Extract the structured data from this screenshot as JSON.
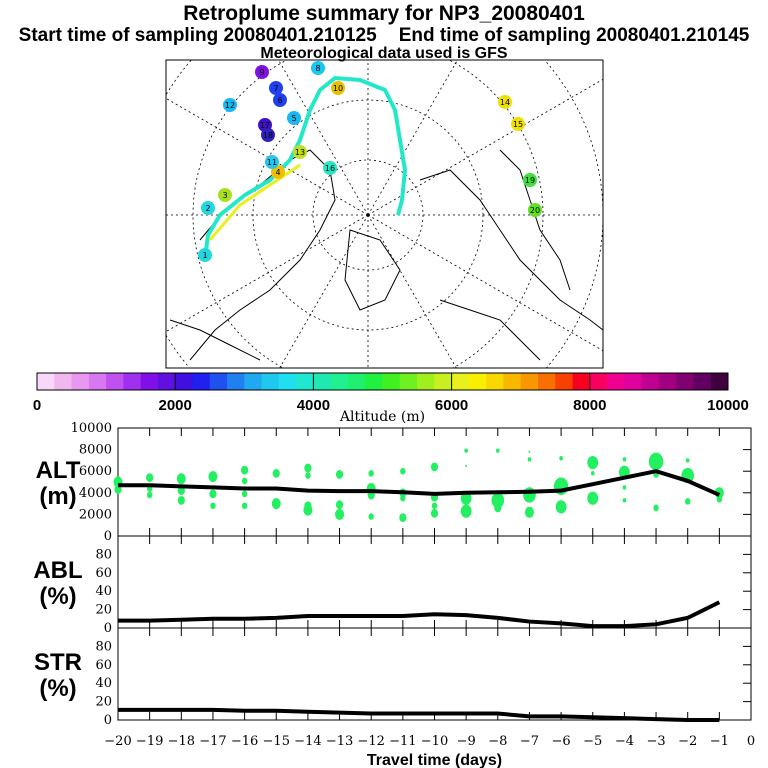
{
  "title": "Retroplume summary for NP3_20080401",
  "subtitle_start": "Start time of sampling 20080401.210125",
  "subtitle_end": "End time of sampling 20080401.210145",
  "subtitle_met": "Meteorological data used is GFS",
  "colors": {
    "trajectory": "#22e8c8",
    "bubble": "#22f060",
    "line": "#000000"
  },
  "chart_data": [
    {
      "type": "map",
      "name": "trajectory-map",
      "labels": [
        {
          "t": "1",
          "c": "#22d8e0"
        },
        {
          "t": "2",
          "c": "#22d8e0"
        },
        {
          "t": "3",
          "c": "#a8e020"
        },
        {
          "t": "4",
          "c": "#f0c000"
        },
        {
          "t": "5",
          "c": "#18b8f0"
        },
        {
          "t": "6",
          "c": "#2040f0"
        },
        {
          "t": "7",
          "c": "#2040f0"
        },
        {
          "t": "8",
          "c": "#18c8f0"
        },
        {
          "t": "9",
          "c": "#8010e0"
        },
        {
          "t": "10",
          "c": "#e8c000"
        },
        {
          "t": "11",
          "c": "#20c8f0"
        },
        {
          "t": "12",
          "c": "#18b8f0"
        },
        {
          "t": "13",
          "c": "#c0e020"
        },
        {
          "t": "14",
          "c": "#f0e000"
        },
        {
          "t": "15",
          "c": "#f0e000"
        },
        {
          "t": "16",
          "c": "#22e8c8"
        },
        {
          "t": "17",
          "c": "#4010c8"
        },
        {
          "t": "18",
          "c": "#3020c0"
        },
        {
          "t": "19",
          "c": "#40e040"
        },
        {
          "t": "20",
          "c": "#60e020"
        }
      ]
    },
    {
      "type": "colorbar",
      "xlabel": "Altitude (m)",
      "ticks": [
        "0",
        "2000",
        "4000",
        "6000",
        "8000",
        "10000"
      ],
      "range": [
        0,
        10000
      ],
      "colors": [
        "#f8d8f8",
        "#f0b8f0",
        "#e898f0",
        "#d878f0",
        "#c050f0",
        "#a030f0",
        "#8010e8",
        "#6010e0",
        "#4010e0",
        "#2020f0",
        "#2050f0",
        "#2080f0",
        "#20a8f0",
        "#20c8f0",
        "#20e0f0",
        "#20e8d0",
        "#20e8b0",
        "#20f090",
        "#20f070",
        "#20f040",
        "#40f020",
        "#70f020",
        "#a0f020",
        "#c8f020",
        "#e8f020",
        "#f8f000",
        "#f8d800",
        "#f8b800",
        "#f89800",
        "#f87000",
        "#f84000",
        "#f80020",
        "#f80060",
        "#f00090",
        "#e000a0",
        "#c00090",
        "#a00080",
        "#800070",
        "#600060",
        "#400040"
      ]
    },
    {
      "type": "line",
      "name": "ALT",
      "ylabel": "ALT",
      "yunit": "(m)",
      "ylim": [
        0,
        10000
      ],
      "yticks": [
        "0",
        "2000",
        "4000",
        "6000",
        "8000",
        "10000"
      ],
      "x": [
        -20,
        -19,
        -18,
        -17,
        -16,
        -15,
        -14,
        -13,
        -12,
        -11,
        -10,
        -9,
        -8,
        -7,
        -6,
        -5,
        -4,
        -3,
        -2,
        -1
      ],
      "values": [
        4700,
        4700,
        4600,
        4500,
        4400,
        4400,
        4200,
        4150,
        4150,
        4050,
        3900,
        4000,
        4050,
        4100,
        4200,
        4800,
        5400,
        6000,
        5100,
        3800
      ],
      "bubbles": [
        [
          -20,
          5000,
          5
        ],
        [
          -20,
          4300,
          4
        ],
        [
          -19,
          5400,
          4
        ],
        [
          -19,
          4400,
          3
        ],
        [
          -19,
          3800,
          3
        ],
        [
          -18,
          5300,
          5
        ],
        [
          -18,
          4200,
          4
        ],
        [
          -18,
          3300,
          4
        ],
        [
          -17,
          5500,
          5
        ],
        [
          -17,
          3900,
          4
        ],
        [
          -17,
          2800,
          3
        ],
        [
          -16,
          6100,
          4
        ],
        [
          -16,
          5100,
          3
        ],
        [
          -16,
          3900,
          3
        ],
        [
          -16,
          2800,
          3
        ],
        [
          -15,
          5800,
          4
        ],
        [
          -15,
          3000,
          5
        ],
        [
          -14,
          6300,
          4
        ],
        [
          -14,
          5600,
          3
        ],
        [
          -14,
          2800,
          4
        ],
        [
          -14,
          2400,
          5
        ],
        [
          -13,
          5700,
          4
        ],
        [
          -13,
          2900,
          4
        ],
        [
          -13,
          2000,
          5
        ],
        [
          -12,
          5800,
          3
        ],
        [
          -12,
          4400,
          5
        ],
        [
          -12,
          3800,
          4
        ],
        [
          -12,
          1800,
          3
        ],
        [
          -11,
          6000,
          3
        ],
        [
          -11,
          4000,
          4
        ],
        [
          -11,
          3500,
          3
        ],
        [
          -11,
          1700,
          4
        ],
        [
          -10,
          6400,
          4
        ],
        [
          -10,
          3600,
          4
        ],
        [
          -10,
          2800,
          3
        ],
        [
          -10,
          2100,
          4
        ],
        [
          -9,
          7900,
          2
        ],
        [
          -9,
          6500,
          1
        ],
        [
          -9,
          3500,
          6
        ],
        [
          -9,
          2300,
          6
        ],
        [
          -8,
          7900,
          2
        ],
        [
          -8,
          3300,
          7
        ],
        [
          -8,
          2600,
          4
        ],
        [
          -7,
          7800,
          1
        ],
        [
          -7,
          7100,
          2
        ],
        [
          -7,
          3800,
          7
        ],
        [
          -7,
          2200,
          5
        ],
        [
          -6,
          7200,
          2
        ],
        [
          -6,
          4600,
          8
        ],
        [
          -6,
          2700,
          6
        ],
        [
          -5,
          6800,
          6
        ],
        [
          -5,
          5800,
          2
        ],
        [
          -5,
          3500,
          6
        ],
        [
          -4,
          7100,
          2
        ],
        [
          -4,
          5900,
          6
        ],
        [
          -4,
          4500,
          2
        ],
        [
          -4,
          3300,
          2
        ],
        [
          -3,
          6900,
          8
        ],
        [
          -3,
          5700,
          3
        ],
        [
          -3,
          2600,
          3
        ],
        [
          -2,
          7000,
          2
        ],
        [
          -2,
          5600,
          7
        ],
        [
          -2,
          3200,
          3
        ],
        [
          -1,
          4000,
          5
        ],
        [
          -1,
          3400,
          3
        ]
      ]
    },
    {
      "type": "line",
      "name": "ABL",
      "ylabel": "ABL",
      "yunit": "(%)",
      "ylim": [
        0,
        100
      ],
      "yticks": [
        "0",
        "20",
        "40",
        "60",
        "80"
      ],
      "x": [
        -20,
        -19,
        -18,
        -17,
        -16,
        -15,
        -14,
        -13,
        -12,
        -11,
        -10,
        -9,
        -8,
        -7,
        -6,
        -5,
        -4,
        -3,
        -2,
        -1
      ],
      "values": [
        8,
        8,
        9,
        10,
        10,
        11,
        13,
        13,
        13,
        13,
        15,
        14,
        11,
        7,
        5,
        2,
        2,
        4,
        11,
        28
      ]
    },
    {
      "type": "line",
      "name": "STR",
      "ylabel": "STR",
      "yunit": "(%)",
      "ylim": [
        0,
        100
      ],
      "yticks": [
        "0",
        "20",
        "40",
        "60",
        "80"
      ],
      "x": [
        -20,
        -19,
        -18,
        -17,
        -16,
        -15,
        -14,
        -13,
        -12,
        -11,
        -10,
        -9,
        -8,
        -7,
        -6,
        -5,
        -4,
        -3,
        -2,
        -1
      ],
      "values": [
        11,
        11,
        11,
        11,
        10,
        10,
        9,
        8,
        7,
        7,
        7,
        7,
        7,
        4,
        4,
        3,
        2,
        1,
        0,
        0
      ],
      "xlabel": "Travel time (days)",
      "xticks": [
        "-20",
        "-19",
        "-18",
        "-17",
        "-16",
        "-15",
        "-14",
        "-13",
        "-12",
        "-11",
        "-10",
        "-9",
        "-8",
        "-7",
        "-6",
        "-5",
        "-4",
        "-3",
        "-2",
        "-1",
        "0"
      ]
    }
  ]
}
